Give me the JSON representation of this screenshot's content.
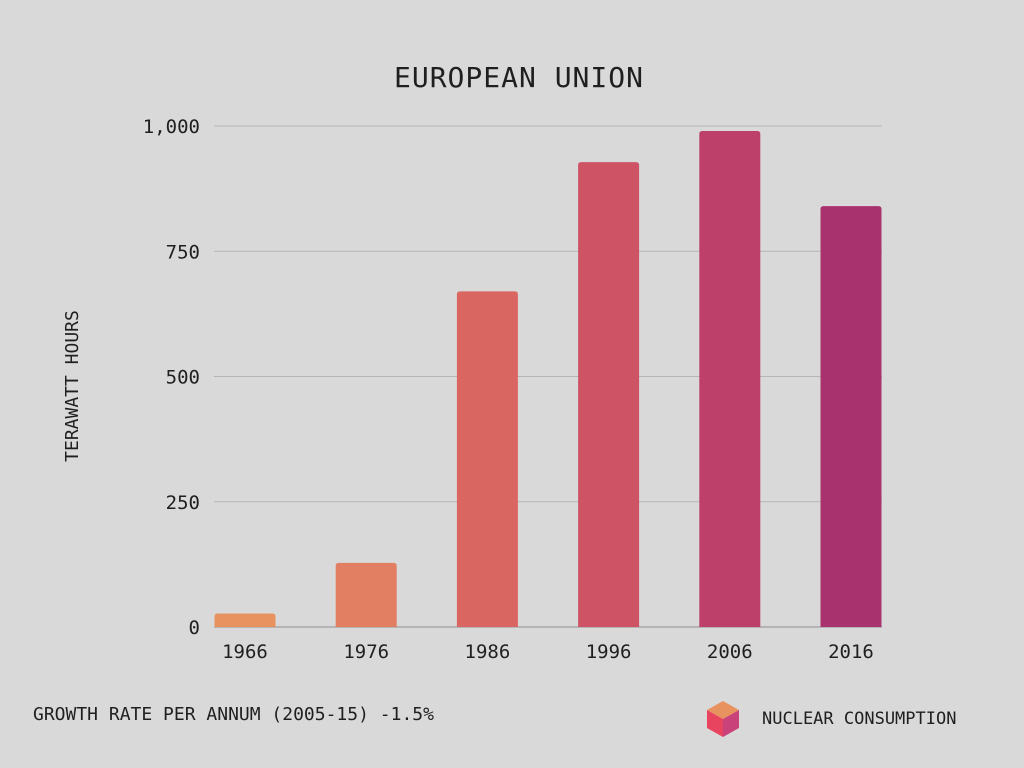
{
  "chart_data": {
    "type": "bar",
    "title": "EUROPEAN UNION",
    "ylabel": "TERAWATT HOURS",
    "xlabel": "",
    "categories": [
      "1966",
      "1976",
      "1986",
      "1996",
      "2006",
      "2016"
    ],
    "series": [
      {
        "name": "NUCLEAR CONSUMPTION",
        "values": [
          27,
          128,
          670,
          928,
          990,
          840
        ]
      }
    ],
    "ylim": [
      0,
      1000
    ],
    "yticks": [
      0,
      250,
      500,
      750,
      1000
    ],
    "ytick_labels": [
      "0",
      "250",
      "500",
      "750",
      "1,000"
    ],
    "grid": true,
    "legend_position": "bottom-right",
    "bar_colors": [
      "#e8935f",
      "#e27e62",
      "#d96661",
      "#cd5365",
      "#bd406a",
      "#a8326d"
    ]
  },
  "footer": {
    "note": "GROWTH RATE PER ANNUM (2005-15) -1.5%"
  },
  "legend": {
    "label": "NUCLEAR CONSUMPTION",
    "icon": "cube-icon",
    "icon_colors": {
      "top": "#e8935f",
      "left": "#e8435f",
      "right": "#c9427a"
    }
  }
}
